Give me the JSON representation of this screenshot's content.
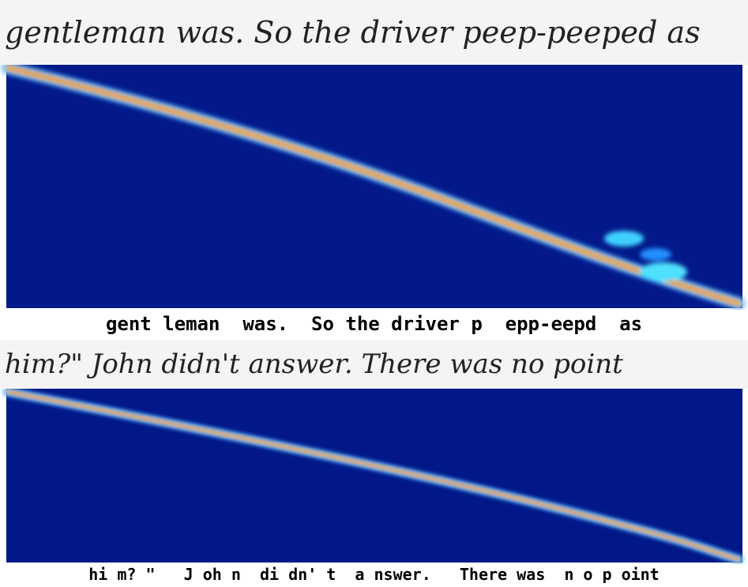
{
  "panels": [
    {
      "handwriting": "gentleman was. So the driver peep-peeped as",
      "transcription": "gent leman  was.  So the driver p  epp-eepd  as"
    },
    {
      "handwriting": "him?\" John didn't answer. There was no point",
      "transcription": "hi m? \"   J oh n  di dn' t  a nswer.   There was  n o p oint"
    }
  ]
}
